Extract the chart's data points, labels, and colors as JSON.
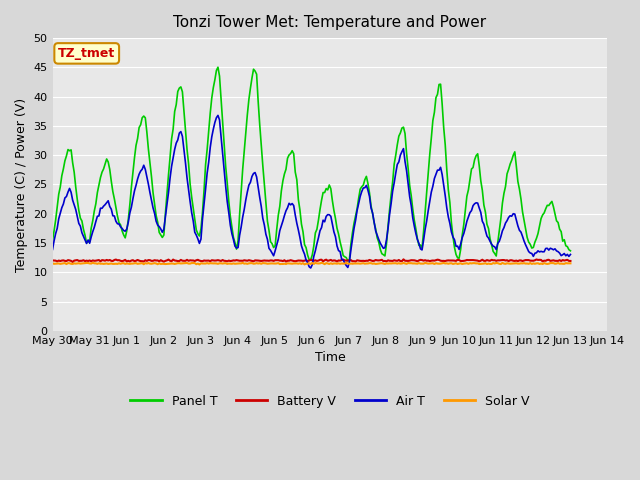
{
  "title": "Tonzi Tower Met: Temperature and Power",
  "xlabel": "Time",
  "ylabel": "Temperature (C) / Power (V)",
  "ylim": [
    0,
    50
  ],
  "yticks": [
    0,
    5,
    10,
    15,
    20,
    25,
    30,
    35,
    40,
    45,
    50
  ],
  "bg_color": "#e8e8e8",
  "fig_bg_color": "#d8d8d8",
  "legend_labels": [
    "Panel T",
    "Battery V",
    "Air T",
    "Solar V"
  ],
  "legend_colors": [
    "#00cc00",
    "#cc0000",
    "#0000cc",
    "#ff9900"
  ],
  "annotation_text": "TZ_tmet",
  "annotation_bg": "#ffffcc",
  "annotation_border": "#cc8800",
  "annotation_text_color": "#cc0000",
  "x_tick_labels": [
    "May 30",
    "May 31",
    "Jun 1",
    "Jun 2",
    "Jun 3",
    "Jun 4",
    "Jun 5",
    "Jun 6",
    "Jun 7",
    "Jun 8",
    "Jun 9",
    "Jun 10",
    "Jun 11",
    "Jun 12",
    "Jun 13",
    "Jun 14"
  ],
  "n_points": 336,
  "day_panel_peaks": [
    31,
    29,
    37,
    42,
    45,
    45,
    31,
    25,
    26,
    35,
    42,
    30,
    30,
    22
  ],
  "day_air_peaks": [
    24,
    22,
    28,
    34,
    37,
    27,
    22,
    20,
    25,
    31,
    28,
    22,
    20,
    14
  ],
  "day_panel_mins": [
    15,
    15,
    16,
    16,
    16,
    14,
    14,
    12,
    12,
    13,
    14,
    12,
    13,
    14
  ],
  "day_air_mins": [
    14,
    15,
    17,
    17,
    15,
    14,
    13,
    11,
    11,
    14,
    14,
    14,
    14,
    13
  ]
}
